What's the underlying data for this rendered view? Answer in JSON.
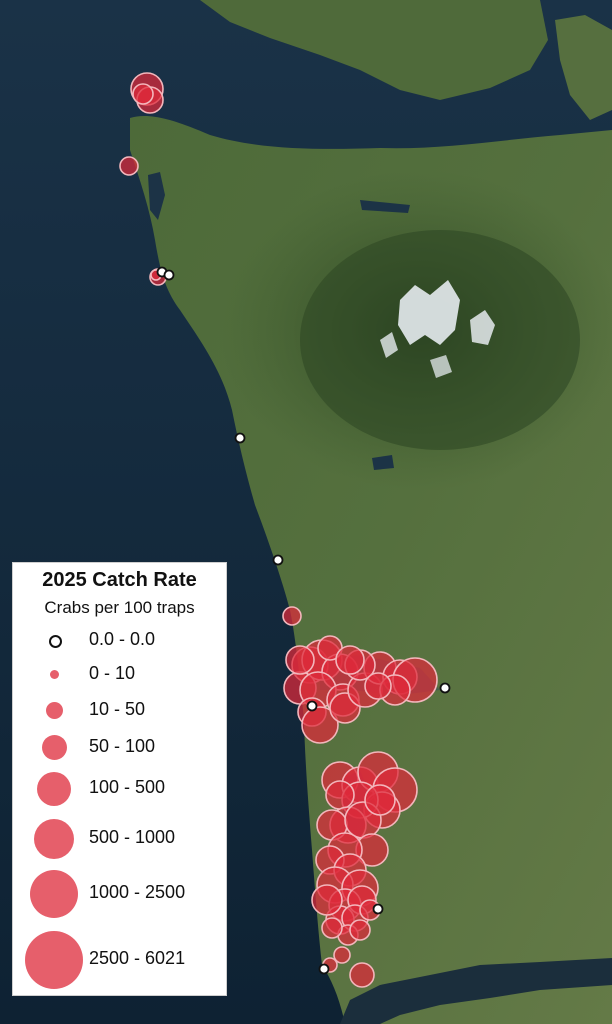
{
  "legend": {
    "title": "2025 Catch Rate",
    "subtitle": "Crabs per 100 traps",
    "classes": [
      {
        "label": "0.0 - 0.0"
      },
      {
        "label": "0 - 10"
      },
      {
        "label": "10 - 50"
      },
      {
        "label": "50 - 100"
      },
      {
        "label": "100 - 500"
      },
      {
        "label": "500 - 1000"
      },
      {
        "label": "1000 - 2500"
      },
      {
        "label": "2500 - 6021"
      }
    ]
  },
  "colors": {
    "water": "#102436",
    "land": "#4c6638",
    "forest": "#344f27",
    "snow": "#e6ebef",
    "catch_fill": "#de2a3a",
    "catch_stroke": "#f3b6bc",
    "zero_fill": "#ffffff",
    "zero_stroke": "#111111"
  }
}
